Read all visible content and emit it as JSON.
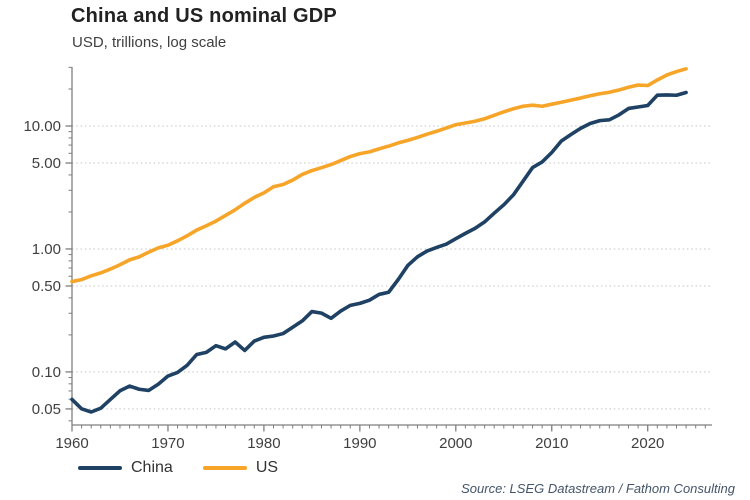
{
  "title": "China and US nominal GDP",
  "subtitle": "USD, trillions, log scale",
  "source": "Source: LSEG Datastream / Fathom Consulting",
  "legend": {
    "position": "bottom-left",
    "items": [
      {
        "label": "China",
        "color": "#1e4164"
      },
      {
        "label": "US",
        "color": "#f7a528"
      }
    ]
  },
  "colors": {
    "china_line": "#1e4164",
    "us_line": "#f7a528",
    "axis": "#7f7f7f",
    "gridline": "#c4c4c4",
    "tick_label": "#404040",
    "title_text": "#222222",
    "source_text": "#44546a",
    "background": "#ffffff"
  },
  "chart_data": {
    "type": "line",
    "title": "China and US nominal GDP",
    "subtitle": "USD, trillions, log scale",
    "xlabel": "",
    "ylabel": "USD, trillions",
    "y_scale": "log",
    "grid": "horizontal-dotted-at-labeled-ticks",
    "legend_position": "bottom-left",
    "x_range": [
      1960,
      2026.7
    ],
    "y_range": [
      0.037,
      30.2
    ],
    "x_major_ticks": [
      1960,
      1970,
      1980,
      1990,
      2000,
      2010,
      2020
    ],
    "x_minor_tick_step_years": 1,
    "y_ticks": [
      {
        "value": 10,
        "label": "10.00"
      },
      {
        "value": 5,
        "label": "5.00"
      },
      {
        "value": 1,
        "label": "1.00"
      },
      {
        "value": 0.5,
        "label": "0.50"
      },
      {
        "value": 0.1,
        "label": "0.10"
      },
      {
        "value": 0.05,
        "label": "0.05"
      }
    ],
    "x": [
      1960,
      1961,
      1962,
      1963,
      1964,
      1965,
      1966,
      1967,
      1968,
      1969,
      1970,
      1971,
      1972,
      1973,
      1974,
      1975,
      1976,
      1977,
      1978,
      1979,
      1980,
      1981,
      1982,
      1983,
      1984,
      1985,
      1986,
      1987,
      1988,
      1989,
      1990,
      1991,
      1992,
      1993,
      1994,
      1995,
      1996,
      1997,
      1998,
      1999,
      2000,
      2001,
      2002,
      2003,
      2004,
      2005,
      2006,
      2007,
      2008,
      2009,
      2010,
      2011,
      2012,
      2013,
      2014,
      2015,
      2016,
      2017,
      2018,
      2019,
      2020,
      2021,
      2022,
      2023,
      2024
    ],
    "series": [
      {
        "name": "China",
        "color": "#1e4164",
        "values": [
          0.0597,
          0.0501,
          0.0472,
          0.0507,
          0.0597,
          0.0702,
          0.0767,
          0.0723,
          0.0707,
          0.0795,
          0.0926,
          0.099,
          0.1132,
          0.1386,
          0.1442,
          0.1634,
          0.154,
          0.175,
          0.1495,
          0.1783,
          0.1911,
          0.1959,
          0.2051,
          0.2307,
          0.2599,
          0.3095,
          0.3008,
          0.273,
          0.3124,
          0.3478,
          0.3609,
          0.3834,
          0.4269,
          0.4447,
          0.5643,
          0.7345,
          0.8638,
          0.9616,
          1.029,
          1.094,
          1.211,
          1.339,
          1.471,
          1.66,
          1.955,
          2.286,
          2.752,
          3.55,
          4.594,
          5.102,
          6.087,
          7.552,
          8.532,
          9.57,
          10.476,
          11.062,
          11.233,
          12.31,
          13.895,
          14.28,
          14.688,
          17.82,
          17.882,
          17.795,
          18.744
        ]
      },
      {
        "name": "US",
        "color": "#f7a528",
        "values": [
          0.543,
          0.563,
          0.605,
          0.639,
          0.686,
          0.744,
          0.815,
          0.862,
          0.943,
          1.02,
          1.073,
          1.165,
          1.279,
          1.425,
          1.545,
          1.685,
          1.873,
          2.082,
          2.352,
          2.627,
          2.857,
          3.207,
          3.344,
          3.634,
          4.038,
          4.339,
          4.58,
          4.855,
          5.236,
          5.642,
          5.963,
          6.158,
          6.52,
          6.859,
          7.287,
          7.64,
          8.073,
          8.578,
          9.063,
          9.631,
          10.251,
          10.582,
          10.936,
          11.458,
          12.214,
          13.037,
          13.816,
          14.474,
          14.77,
          14.478,
          15.049,
          15.6,
          16.254,
          16.881,
          17.608,
          18.295,
          18.805,
          19.612,
          20.657,
          21.54,
          21.354,
          23.681,
          26.007,
          27.721,
          29.185
        ]
      }
    ]
  }
}
